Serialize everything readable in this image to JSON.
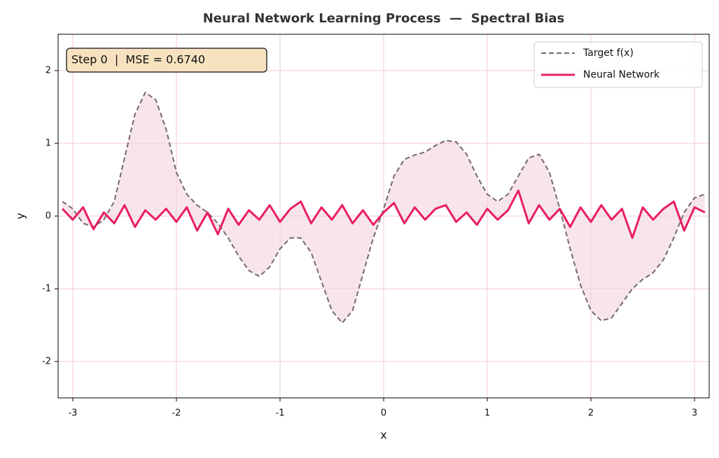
{
  "chart_data": {
    "type": "line",
    "title": "Neural Network Learning Process  —  Spectral Bias",
    "annotation": "Step 0  |  MSE = 0.6740",
    "xlabel": "x",
    "ylabel": "y",
    "x": [
      -3.1,
      -3.0,
      -2.9,
      -2.8,
      -2.7,
      -2.6,
      -2.5,
      -2.4,
      -2.3,
      -2.2,
      -2.1,
      -2.0,
      -1.9,
      -1.8,
      -1.7,
      -1.6,
      -1.5,
      -1.4,
      -1.3,
      -1.2,
      -1.1,
      -1.0,
      -0.9,
      -0.8,
      -0.7,
      -0.6,
      -0.5,
      -0.4,
      -0.3,
      -0.2,
      -0.1,
      0.0,
      0.1,
      0.2,
      0.3,
      0.4,
      0.5,
      0.6,
      0.7,
      0.8,
      0.9,
      1.0,
      1.1,
      1.2,
      1.3,
      1.4,
      1.5,
      1.6,
      1.7,
      1.8,
      1.9,
      2.0,
      2.1,
      2.2,
      2.3,
      2.4,
      2.5,
      2.6,
      2.7,
      2.8,
      2.9,
      3.0,
      3.1
    ],
    "series": [
      {
        "name": "Target f(x)",
        "color": "#756868",
        "linestyle": "dashed",
        "values": [
          0.2,
          0.1,
          -0.1,
          -0.15,
          -0.05,
          0.2,
          0.8,
          1.4,
          1.7,
          1.6,
          1.2,
          0.6,
          0.3,
          0.15,
          0.05,
          -0.1,
          -0.3,
          -0.55,
          -0.75,
          -0.83,
          -0.7,
          -0.45,
          -0.3,
          -0.3,
          -0.5,
          -0.9,
          -1.3,
          -1.47,
          -1.3,
          -0.8,
          -0.3,
          0.1,
          0.55,
          0.78,
          0.84,
          0.88,
          0.97,
          1.04,
          1.02,
          0.85,
          0.55,
          0.3,
          0.2,
          0.3,
          0.55,
          0.8,
          0.85,
          0.6,
          0.1,
          -0.45,
          -0.95,
          -1.3,
          -1.44,
          -1.4,
          -1.2,
          -1.0,
          -0.87,
          -0.78,
          -0.6,
          -0.3,
          0.05,
          0.25,
          0.3
        ]
      },
      {
        "name": "Neural Network",
        "color": "#e91e63",
        "linestyle": "solid",
        "values": [
          0.1,
          -0.05,
          0.12,
          -0.18,
          0.05,
          -0.1,
          0.15,
          -0.15,
          0.08,
          -0.05,
          0.1,
          -0.08,
          0.12,
          -0.2,
          0.05,
          -0.25,
          0.1,
          -0.12,
          0.08,
          -0.05,
          0.15,
          -0.08,
          0.1,
          0.2,
          -0.1,
          0.12,
          -0.05,
          0.15,
          -0.1,
          0.08,
          -0.12,
          0.05,
          0.18,
          -0.1,
          0.12,
          -0.05,
          0.1,
          0.15,
          -0.08,
          0.05,
          -0.12,
          0.1,
          -0.05,
          0.08,
          0.35,
          -0.1,
          0.15,
          -0.05,
          0.1,
          -0.15,
          0.12,
          -0.08,
          0.15,
          -0.05,
          0.1,
          -0.3,
          0.12,
          -0.05,
          0.1,
          0.2,
          -0.2,
          0.12,
          0.05
        ]
      }
    ],
    "xlim": [
      -3.1416,
      3.1416
    ],
    "xticks": [
      -3,
      -2,
      -1,
      0,
      1,
      2,
      3
    ],
    "ylim": [
      -2.5,
      2.5
    ],
    "yticks": [
      -2,
      -1,
      0,
      1,
      2
    ],
    "grid": true,
    "grid_color": "#f0c8d4",
    "fill_color": "#f3d3df",
    "legend": "upper right",
    "annotation_color": "#f7e2c0"
  }
}
